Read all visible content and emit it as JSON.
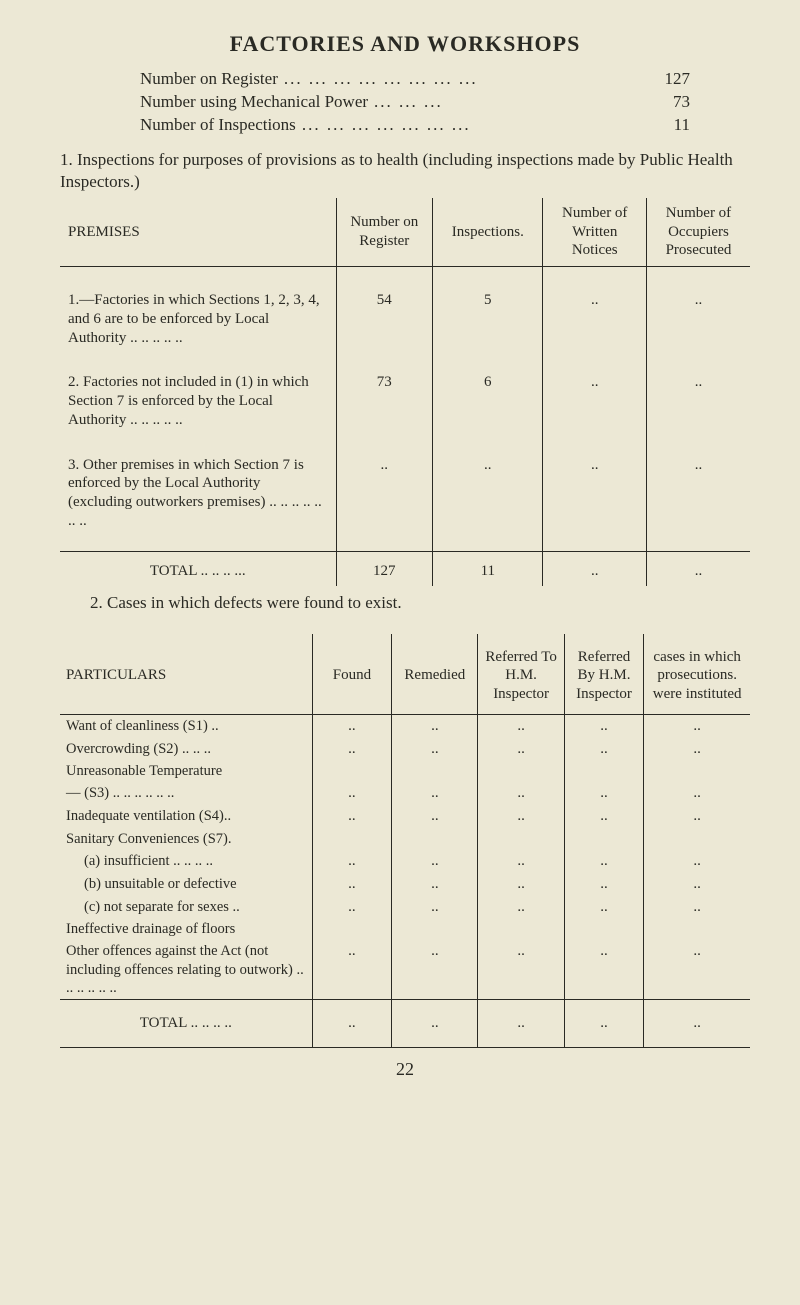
{
  "title": "FACTORIES AND WORKSHOPS",
  "stats": [
    {
      "label": "Number on Register",
      "dots": "... ... ... ... ... ... ... ...",
      "value": "127"
    },
    {
      "label": "Number using Mechanical Power",
      "dots": "... ... ...",
      "value": "73"
    },
    {
      "label": "Number of Inspections",
      "dots": "... ... ... ... ... ... ...",
      "value": "11"
    }
  ],
  "section1": {
    "intro": "1. Inspections for purposes of provisions as to health (including inspections made by Public Health Inspectors.)",
    "headers": {
      "premises": "PREMISES",
      "number_on_register": "Number on Register",
      "inspections": "Inspections.",
      "written_notices": "Number of Written Notices",
      "occupiers_prosecuted": "Number of Occupiers Prosecuted"
    },
    "rows": [
      {
        "label": "1.—Factories in which Sections 1, 2, 3, 4, and 6 are to be enforced by Local Authority .. .. .. .. ..",
        "c1": "54",
        "c2": "5",
        "c3": "..",
        "c4": ".."
      },
      {
        "label": "2. Factories not included in (1) in which Section 7 is enforced by the Local Authority .. .. .. .. ..",
        "c1": "73",
        "c2": "6",
        "c3": "..",
        "c4": ".."
      },
      {
        "label": "3. Other premises in which Section 7 is enforced by the Local Authority (excluding outworkers premises) .. .. .. .. .. .. ..",
        "c1": "..",
        "c2": "..",
        "c3": "..",
        "c4": ".."
      }
    ],
    "total": {
      "label": "TOTAL .. .. .. ...",
      "c1": "127",
      "c2": "11",
      "c3": "..",
      "c4": ".."
    }
  },
  "section2": {
    "intro": "2. Cases in which defects were found to exist.",
    "headers": {
      "particulars": "PARTICULARS",
      "found": "Found",
      "remedied": "Remedied",
      "referred_to": "Referred To H.M. Inspector",
      "referred_by": "Referred By H.M. Inspector",
      "prosecutions": "cases in which prosecutions. were instituted"
    },
    "rows": [
      {
        "label": "Want of cleanliness (S1) ..",
        "c": [
          "..",
          "..",
          "..",
          "..",
          ".."
        ]
      },
      {
        "label": "Overcrowding (S2) .. .. ..",
        "c": [
          "..",
          "..",
          "..",
          "..",
          ".."
        ]
      },
      {
        "label": "Unreasonable Temperature",
        "c": [
          "",
          "",
          "",
          "",
          ""
        ]
      },
      {
        "label": "— (S3) .. .. .. .. .. ..",
        "c": [
          "..",
          "..",
          "..",
          "..",
          ".."
        ]
      },
      {
        "label": "Inadequate ventilation (S4)..",
        "c": [
          "..",
          "..",
          "..",
          "..",
          ".."
        ]
      },
      {
        "label": "Sanitary Conveniences (S7).",
        "c": [
          "",
          "",
          "",
          "",
          ""
        ]
      },
      {
        "label": "(a) insufficient .. .. .. ..",
        "indent": true,
        "c": [
          "..",
          "..",
          "..",
          "..",
          ".."
        ]
      },
      {
        "label": "(b) unsuitable or defective",
        "indent": true,
        "c": [
          "..",
          "..",
          "..",
          "..",
          ".."
        ]
      },
      {
        "label": "(c) not separate for sexes ..",
        "indent": true,
        "c": [
          "..",
          "..",
          "..",
          "..",
          ".."
        ]
      },
      {
        "label": "Ineffective drainage of floors",
        "c": [
          "",
          "",
          "",
          "",
          ""
        ]
      },
      {
        "label": "Other offences against the Act (not including offences relating to outwork) .. .. .. .. .. ..",
        "c": [
          "..",
          "..",
          "..",
          "..",
          ".."
        ]
      }
    ],
    "total": {
      "label": "TOTAL .. .. .. ..",
      "c": [
        "..",
        "..",
        "..",
        "..",
        ".."
      ]
    }
  },
  "page_number": "22"
}
